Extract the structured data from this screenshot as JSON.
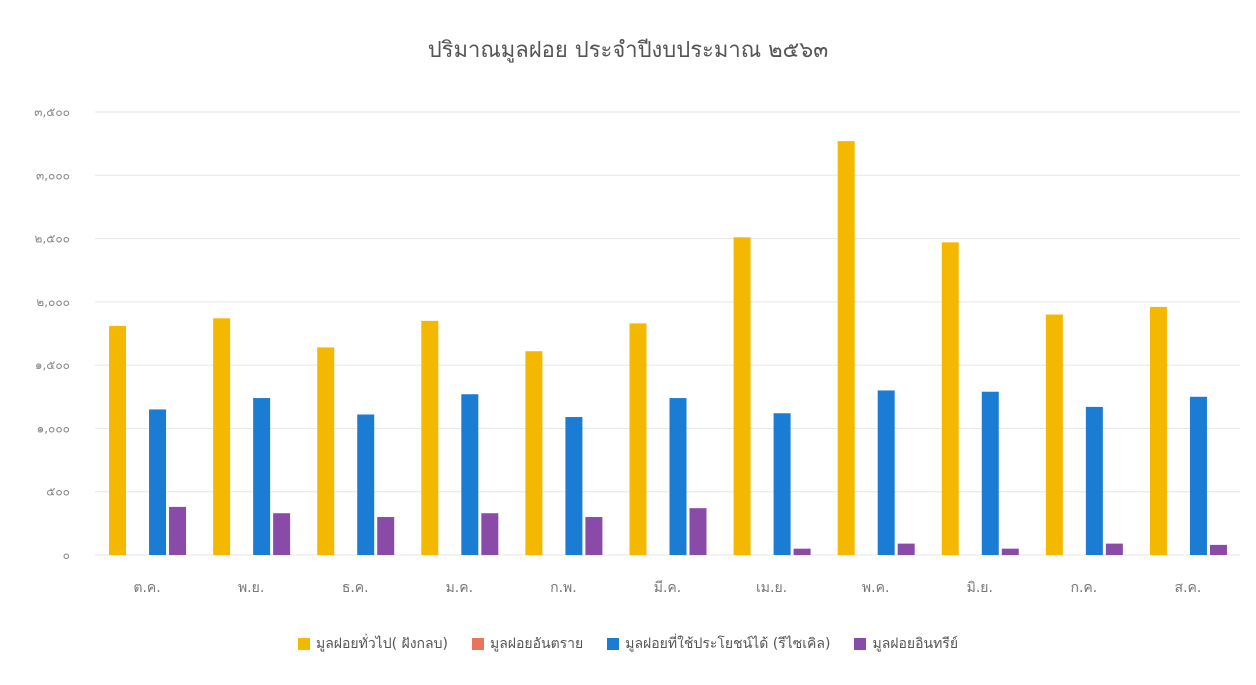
{
  "chart_data": {
    "type": "bar",
    "title": "ปริมาณมูลฝอย ประจำปีงบประมาณ ๒๕๖๓",
    "xlabel": "",
    "ylabel": "",
    "categories": [
      "ต.ค.",
      "พ.ย.",
      "ธ.ค.",
      "ม.ค.",
      "ก.พ.",
      "มี.ค.",
      "เม.ย.",
      "พ.ค.",
      "มิ.ย.",
      "ก.ค.",
      "ส.ค."
    ],
    "series": [
      {
        "name": "มูลฝอยทั่วไป( ฝังกลบ)",
        "color": "#F5B800",
        "values": [
          1810,
          1870,
          1640,
          1850,
          1610,
          1830,
          2510,
          3270,
          2470,
          1900,
          1960
        ]
      },
      {
        "name": "มูลฝอยอันตราย",
        "color": "#E8755A",
        "values": [
          0,
          0,
          0,
          0,
          0,
          0,
          0,
          0,
          0,
          0,
          0
        ]
      },
      {
        "name": "มูลฝอยที่ใช้ประโยชน์ได้ (รีไซเคิล)",
        "color": "#1A7DD3",
        "values": [
          1150,
          1240,
          1110,
          1270,
          1090,
          1240,
          1120,
          1300,
          1290,
          1170,
          1250
        ]
      },
      {
        "name": "มูลฝอยอินทรีย์",
        "color": "#8A4BA8",
        "values": [
          380,
          330,
          300,
          330,
          300,
          370,
          50,
          90,
          50,
          90,
          80
        ]
      }
    ],
    "ylim": [
      0,
      3500
    ],
    "yticks": [
      0,
      500,
      1000,
      1500,
      2000,
      2500,
      3000,
      3500
    ],
    "ytick_labels": [
      "๐",
      "๕๐๐",
      "๑,๐๐๐",
      "๑,๕๐๐",
      "๒,๐๐๐",
      "๒,๕๐๐",
      "๓,๐๐๐",
      "๓,๕๐๐"
    ],
    "grid": true,
    "legend_position": "bottom"
  }
}
